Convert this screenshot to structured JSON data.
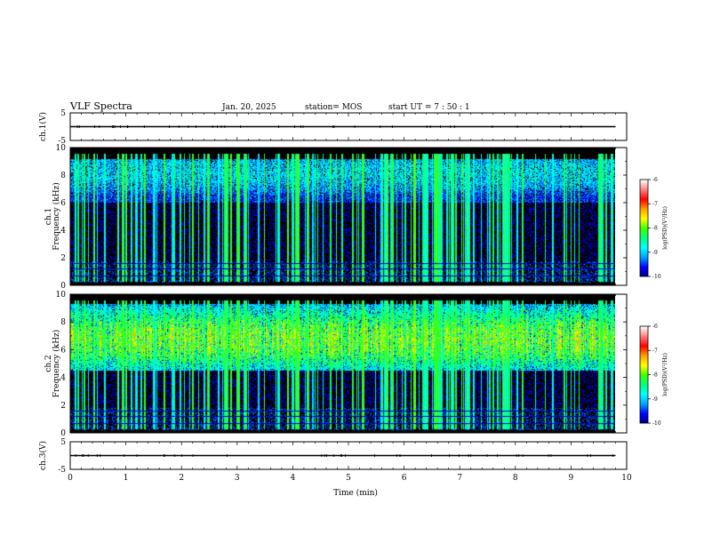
{
  "header": {
    "title": "VLF Spectra",
    "date": "Jan. 20, 2025",
    "station": "station= MOS",
    "start": "start  UT =   7 : 50 : 1"
  },
  "chart_data": {
    "type": "heatmap",
    "title": "VLF Spectra",
    "xlabel": "Time  (min)",
    "xlim": [
      0,
      10
    ],
    "x_ticks": [
      "0",
      "1",
      "2",
      "3",
      "4",
      "5",
      "6",
      "7",
      "8",
      "9",
      "10"
    ],
    "data_end_min": 9.8,
    "panels": [
      {
        "id": "ch1-waveform",
        "kind": "waveform",
        "ylabel": "ch.1(V)",
        "ylim": [
          -5,
          5
        ],
        "y_ticks": [
          "5",
          "-5"
        ],
        "trace_level": 0
      },
      {
        "id": "ch1-spectrogram",
        "kind": "spectrogram",
        "ylabel_line1": "ch.1",
        "ylabel_line2": "Frequency  (kHz)",
        "ylim": [
          0,
          10
        ],
        "y_ticks": [
          "0",
          "2",
          "4",
          "6",
          "8",
          "10"
        ],
        "band_kHz": [
          6.0,
          9.2
        ],
        "peak_kHz": 8.2,
        "base_log_psd": -9.5,
        "band_log_psd": -8.8,
        "colorbar": {
          "label": "log(PSD)(V²/Hz)",
          "range": [
            -10,
            -6
          ],
          "ticks": [
            "-6",
            "-7",
            "-8",
            "-9",
            "-10"
          ]
        }
      },
      {
        "id": "ch2-spectrogram",
        "kind": "spectrogram",
        "ylabel_line1": "ch.2",
        "ylabel_line2": "Frequency  (kHz)",
        "ylim": [
          0,
          10
        ],
        "y_ticks": [
          "0",
          "2",
          "4",
          "6",
          "8",
          "10"
        ],
        "band_kHz": [
          4.5,
          9.8
        ],
        "peak_kHz": 6.8,
        "base_log_psd": -9.4,
        "band_log_psd": -7.7,
        "colorbar": {
          "label": "log(PSD)(V²/Hz)",
          "range": [
            -10,
            -6
          ],
          "ticks": [
            "-6",
            "-7",
            "-8",
            "-9",
            "-10"
          ]
        }
      },
      {
        "id": "ch3-waveform",
        "kind": "waveform",
        "ylabel": "ch.3(V)",
        "ylim": [
          -5,
          5
        ],
        "y_ticks": [
          "5",
          "-5"
        ],
        "trace_level": 0
      }
    ],
    "colormap": [
      "#000080",
      "#0000ff",
      "#00a0ff",
      "#00ffff",
      "#00ff80",
      "#40ff00",
      "#ffff00",
      "#ffa000",
      "#ff0000",
      "#ff8080",
      "#ffffff"
    ]
  }
}
